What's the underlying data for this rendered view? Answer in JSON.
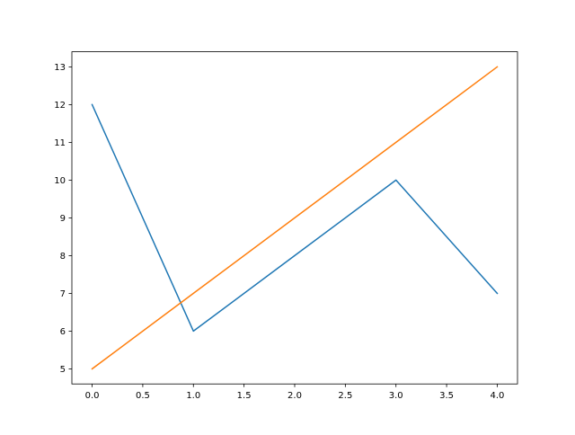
{
  "chart_data": {
    "type": "line",
    "title": "",
    "xlabel": "",
    "ylabel": "",
    "xlim": [
      -0.2,
      4.2
    ],
    "ylim": [
      4.6,
      13.4
    ],
    "xticks": [
      0.0,
      0.5,
      1.0,
      1.5,
      2.0,
      2.5,
      3.0,
      3.5,
      4.0
    ],
    "xtick_labels": [
      "0.0",
      "0.5",
      "1.0",
      "1.5",
      "2.0",
      "2.5",
      "3.0",
      "3.5",
      "4.0"
    ],
    "yticks": [
      5,
      6,
      7,
      8,
      9,
      10,
      11,
      12,
      13
    ],
    "ytick_labels": [
      "5",
      "6",
      "7",
      "8",
      "9",
      "10",
      "11",
      "12",
      "13"
    ],
    "grid": false,
    "x": [
      0,
      1,
      2,
      3,
      4
    ],
    "series": [
      {
        "values": [
          12,
          6,
          8,
          10,
          7
        ],
        "color": "#1f77b4"
      },
      {
        "values": [
          5,
          7,
          9,
          11,
          13
        ],
        "color": "#ff7f0e"
      }
    ]
  }
}
